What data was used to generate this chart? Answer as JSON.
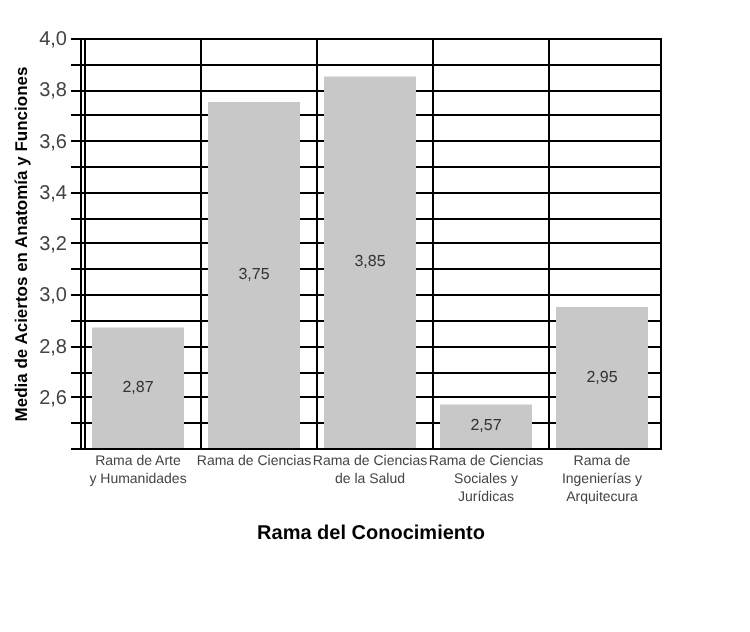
{
  "chart_data": {
    "type": "bar",
    "xlabel": "Rama del Conocimiento",
    "ylabel": "Media de Aciertos en Anatomía y Funciones",
    "categories": [
      "Rama de Arte\ny Humanidades",
      "Rama de Ciencias",
      "Rama de Ciencias\nde la Salud",
      "Rama de Ciencias\nSociales y\nJurídicas",
      "Rama de\nIngenierías y\nArquitecura"
    ],
    "values": [
      2.87,
      3.75,
      3.85,
      2.57,
      2.95
    ],
    "value_labels": [
      "2,87",
      "3,75",
      "3,85",
      "2,57",
      "2,95"
    ],
    "color": "#c8c8c8",
    "ylim": [
      2.4,
      4.0
    ],
    "yticks": [
      {
        "value": 2.4,
        "label": null
      },
      {
        "value": 2.5,
        "label": null
      },
      {
        "value": 2.6,
        "label": "2,6"
      },
      {
        "value": 2.7,
        "label": null
      },
      {
        "value": 2.8,
        "label": "2,8"
      },
      {
        "value": 2.9,
        "label": null
      },
      {
        "value": 3.0,
        "label": "3,0"
      },
      {
        "value": 3.1,
        "label": null
      },
      {
        "value": 3.2,
        "label": "3,2"
      },
      {
        "value": 3.3,
        "label": null
      },
      {
        "value": 3.4,
        "label": "3,4"
      },
      {
        "value": 3.5,
        "label": null
      },
      {
        "value": 3.6,
        "label": "3,6"
      },
      {
        "value": 3.7,
        "label": null
      },
      {
        "value": 3.8,
        "label": "3,8"
      },
      {
        "value": 3.9,
        "label": null
      },
      {
        "value": 4.0,
        "label": "4,0"
      }
    ],
    "grid": true
  }
}
